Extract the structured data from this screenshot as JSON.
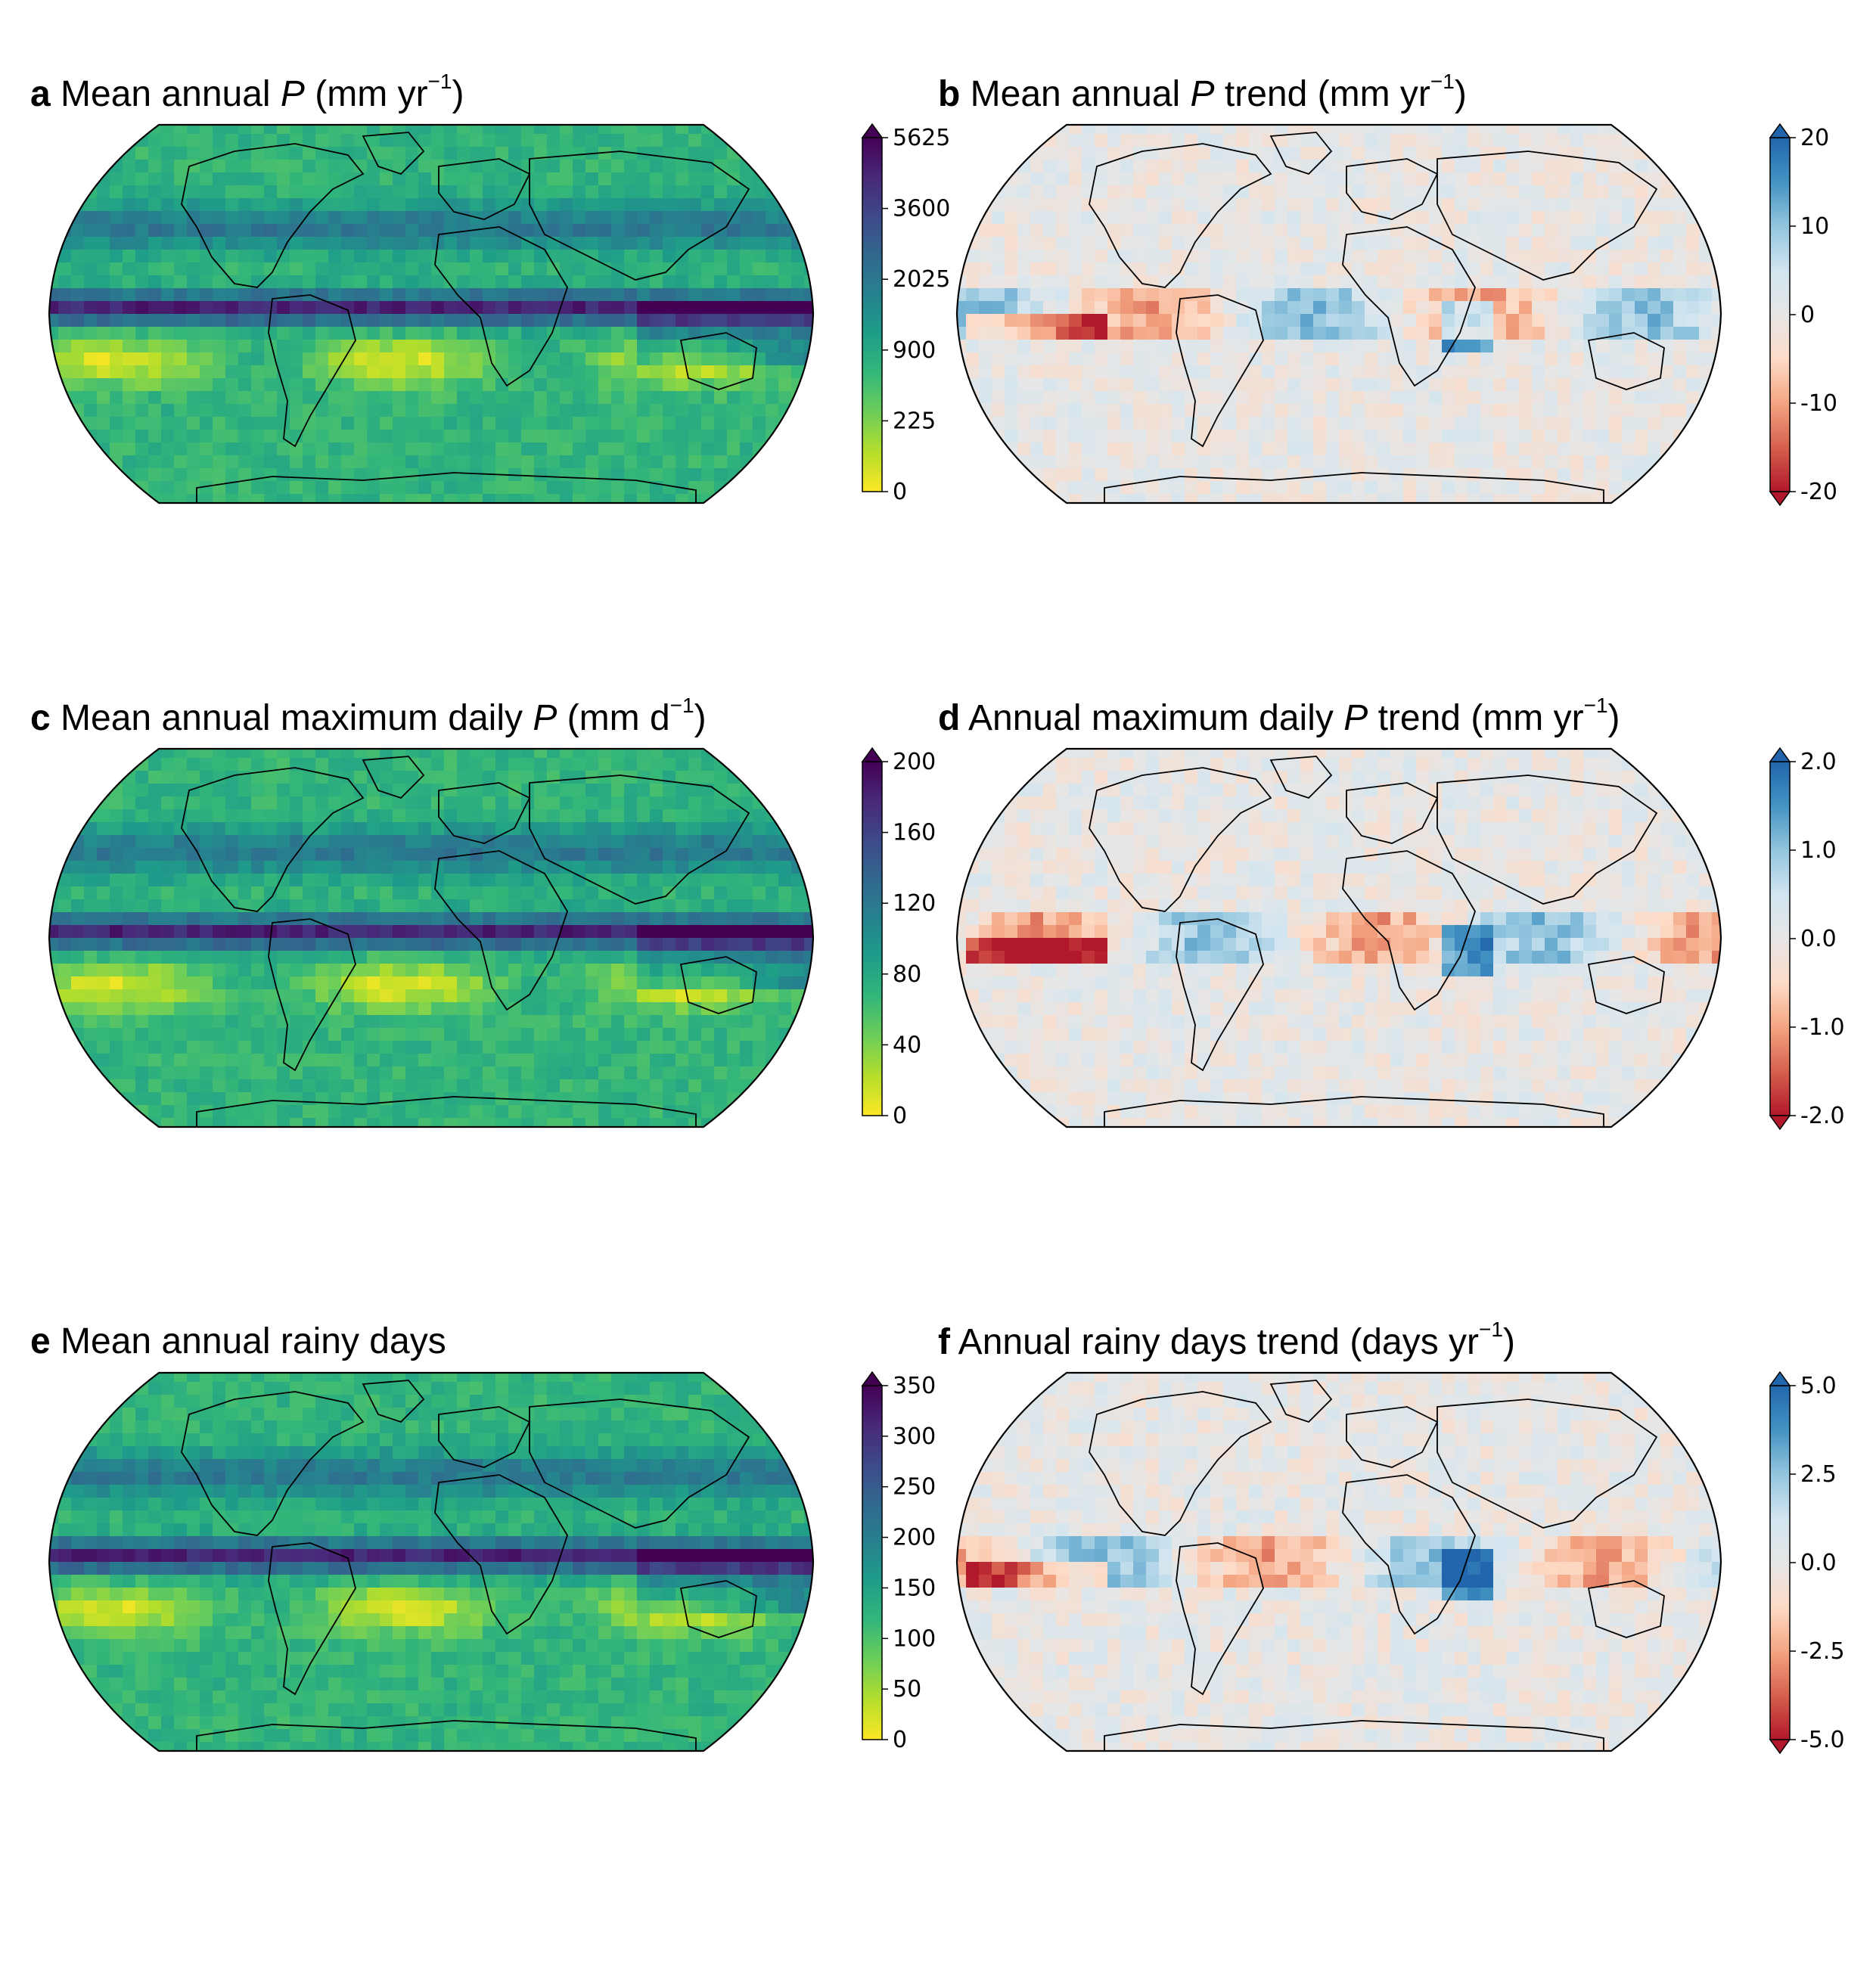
{
  "panels": [
    {
      "letter": "a",
      "pre": " Mean annual ",
      "var": "P",
      "unit": " (mm yr",
      "sup": "−1",
      "post": ")",
      "cmap": "viridis_r",
      "ticks": [
        "5625",
        "3600",
        "2025",
        "900",
        "225",
        "0"
      ],
      "extend": "max"
    },
    {
      "letter": "b",
      "pre": " Mean annual ",
      "var": "P",
      "unit": " trend (mm yr",
      "sup": "−1",
      "post": ")",
      "cmap": "rdbu",
      "ticks": [
        "20",
        "10",
        "0",
        "-10",
        "-20"
      ],
      "extend": "both"
    },
    {
      "letter": "c",
      "pre": " Mean annual maximum daily ",
      "var": "P",
      "unit": " (mm d",
      "sup": "−1",
      "post": ")",
      "cmap": "viridis_r",
      "ticks": [
        "200",
        "160",
        "120",
        "80",
        "40",
        "0"
      ],
      "extend": "max"
    },
    {
      "letter": "d",
      "pre": " Annual maximum daily ",
      "var": "P",
      "unit": " trend (mm yr",
      "sup": "−1",
      "post": ")",
      "cmap": "rdbu",
      "ticks": [
        "2.0",
        "1.0",
        "0.0",
        "-1.0",
        "-2.0"
      ],
      "extend": "both"
    },
    {
      "letter": "e",
      "pre": " Mean annual rainy days",
      "var": "",
      "unit": "",
      "sup": "",
      "post": "",
      "cmap": "viridis_r",
      "ticks": [
        "350",
        "300",
        "250",
        "200",
        "150",
        "100",
        "50",
        "0"
      ],
      "extend": "max"
    },
    {
      "letter": "f",
      "pre": " Annual rainy days trend (days yr",
      "var": "",
      "unit": "",
      "sup": "−1",
      "post": ")",
      "cmap": "rdbu",
      "ticks": [
        "5.0",
        "2.5",
        "0.0",
        "-2.5",
        "-5.0"
      ],
      "extend": "both"
    }
  ],
  "colors": {
    "viridis": [
      "#fde725",
      "#b5de2b",
      "#6ece58",
      "#35b779",
      "#1f9e89",
      "#26828e",
      "#31688e",
      "#3e4989",
      "#482878",
      "#440154"
    ],
    "rdbu": [
      "#b2182b",
      "#d6604d",
      "#f4a582",
      "#fddbc7",
      "#e6e6e6",
      "#d1e5f0",
      "#92c5de",
      "#4393c3",
      "#2166ac"
    ],
    "land_outline": "#000000",
    "trend_bg": "#dedede"
  }
}
